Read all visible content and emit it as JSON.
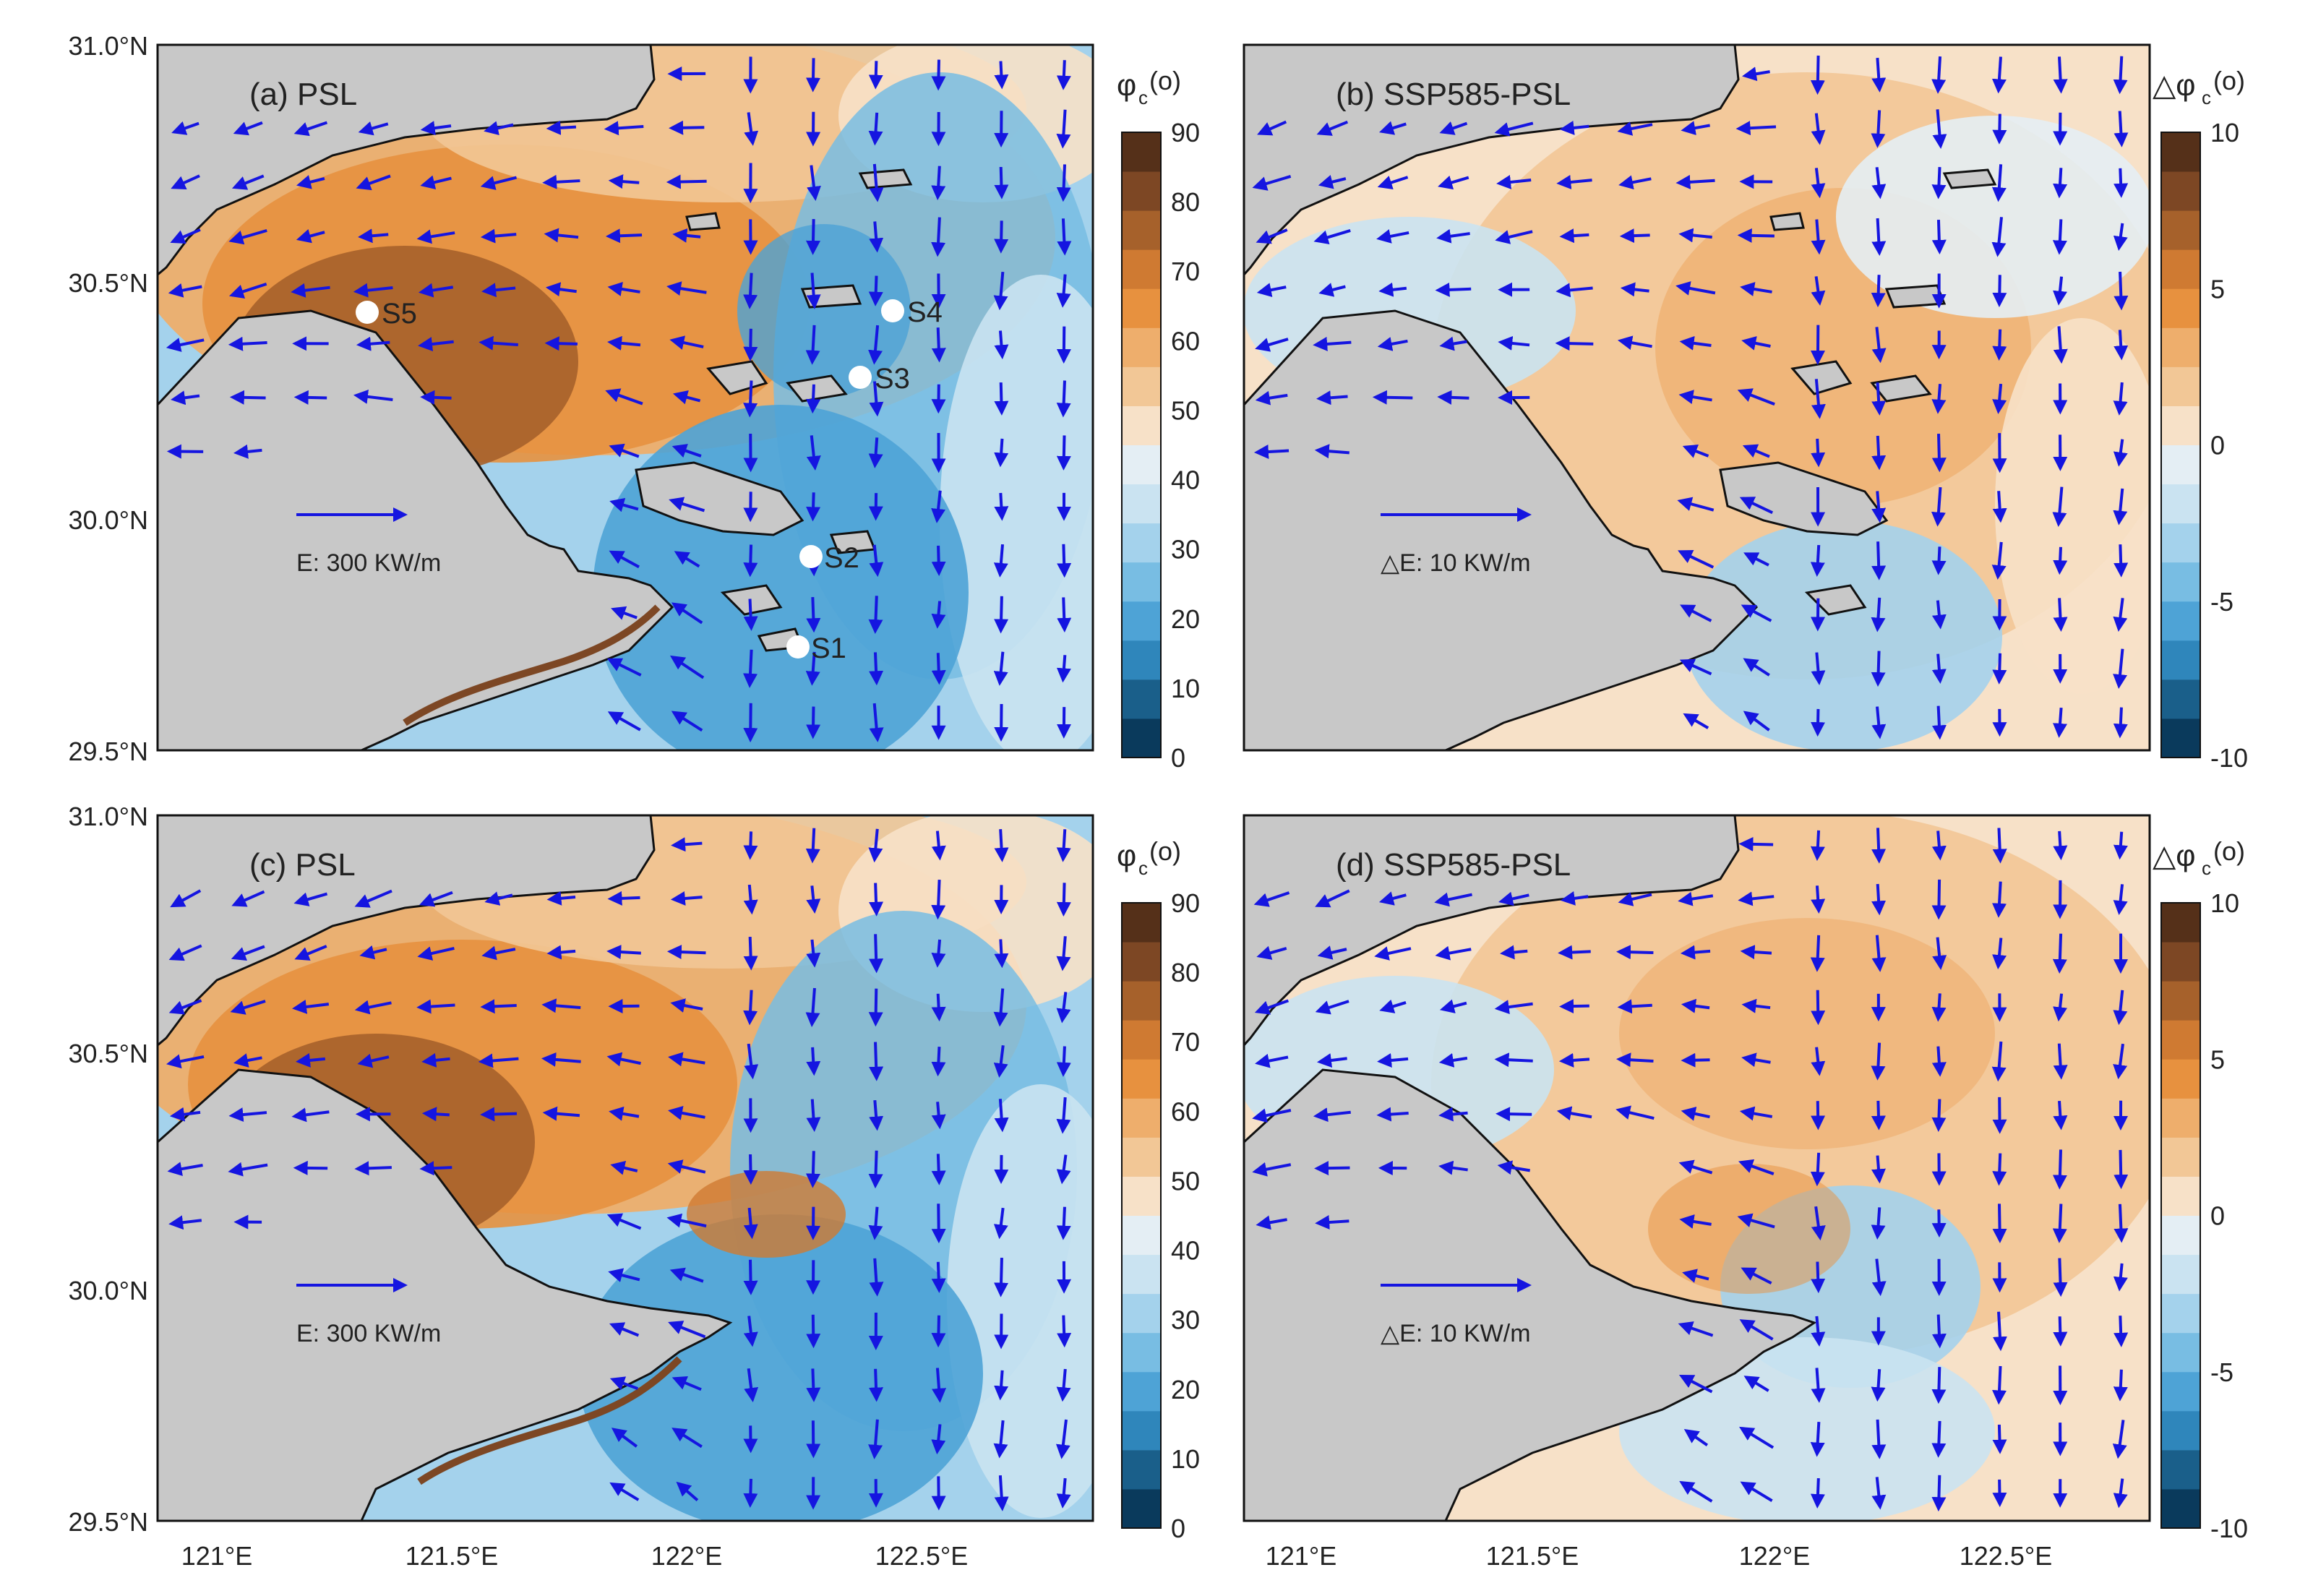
{
  "figure": {
    "panels": [
      {
        "id": "a",
        "title": "(a) PSL",
        "colorbar": {
          "label_main": "φ",
          "label_sub": "c",
          "label_unit": "(o)",
          "ticks": [
            "90",
            "80",
            "70",
            "60",
            "50",
            "40",
            "30",
            "20",
            "10",
            "0"
          ]
        },
        "scale_label": "E: 300 KW/m",
        "stations": [
          {
            "name": "S1",
            "lon": 122.28,
            "lat": 29.72
          },
          {
            "name": "S2",
            "lon": 122.3,
            "lat": 29.91
          },
          {
            "name": "S3",
            "lon": 122.38,
            "lat": 30.29
          },
          {
            "name": "S4",
            "lon": 122.49,
            "lat": 30.43
          },
          {
            "name": "S5",
            "lon": 121.36,
            "lat": 30.42
          }
        ],
        "lat_ticks": [
          "31.0°N",
          "30.5°N",
          "30.0°N",
          "29.5°N"
        ]
      },
      {
        "id": "b",
        "title": "(b) SSP585-PSL",
        "colorbar": {
          "label_main": "△φ",
          "label_sub": "c",
          "label_unit": "(o)",
          "ticks": [
            "10",
            "5",
            "0",
            "-5",
            "-10"
          ]
        },
        "scale_label": "△E: 10 KW/m",
        "stations": []
      },
      {
        "id": "c",
        "title": "(c) PSL",
        "colorbar": {
          "label_main": "φ",
          "label_sub": "c",
          "label_unit": "(o)",
          "ticks": [
            "90",
            "80",
            "70",
            "60",
            "50",
            "40",
            "30",
            "20",
            "10",
            "0"
          ]
        },
        "scale_label": "E: 300 KW/m",
        "stations": [],
        "lat_ticks": [
          "31.0°N",
          "30.5°N",
          "30.0°N",
          "29.5°N"
        ],
        "lon_ticks": [
          "121°E",
          "121.5°E",
          "122°E",
          "122.5°E"
        ]
      },
      {
        "id": "d",
        "title": "(d) SSP585-PSL",
        "colorbar": {
          "label_main": "△φ",
          "label_sub": "c",
          "label_unit": "(o)",
          "ticks": [
            "10",
            "5",
            "0",
            "-5",
            "-10"
          ]
        },
        "scale_label": "△E: 10 KW/m",
        "stations": [],
        "lon_ticks": [
          "121°E",
          "121.5°E",
          "122°E",
          "122.5°E"
        ]
      }
    ],
    "colors": {
      "land": "#c8c8c8",
      "coast": "#111111",
      "arrow": "#1515e0",
      "station": "#ffffff"
    },
    "colormap": [
      "#0a3a5c",
      "#1a5f8a",
      "#2f86bb",
      "#4ea3d6",
      "#78bde3",
      "#a4d2ec",
      "#cae3f1",
      "#e4eef4",
      "#f7e1c8",
      "#f2c796",
      "#eeae6c",
      "#e7913f",
      "#cf7a32",
      "#a6612b",
      "#7d4724",
      "#553019"
    ],
    "map_extent": {
      "lon": [
        120.9,
        122.9
      ],
      "lat": [
        29.5,
        31.0
      ]
    }
  }
}
